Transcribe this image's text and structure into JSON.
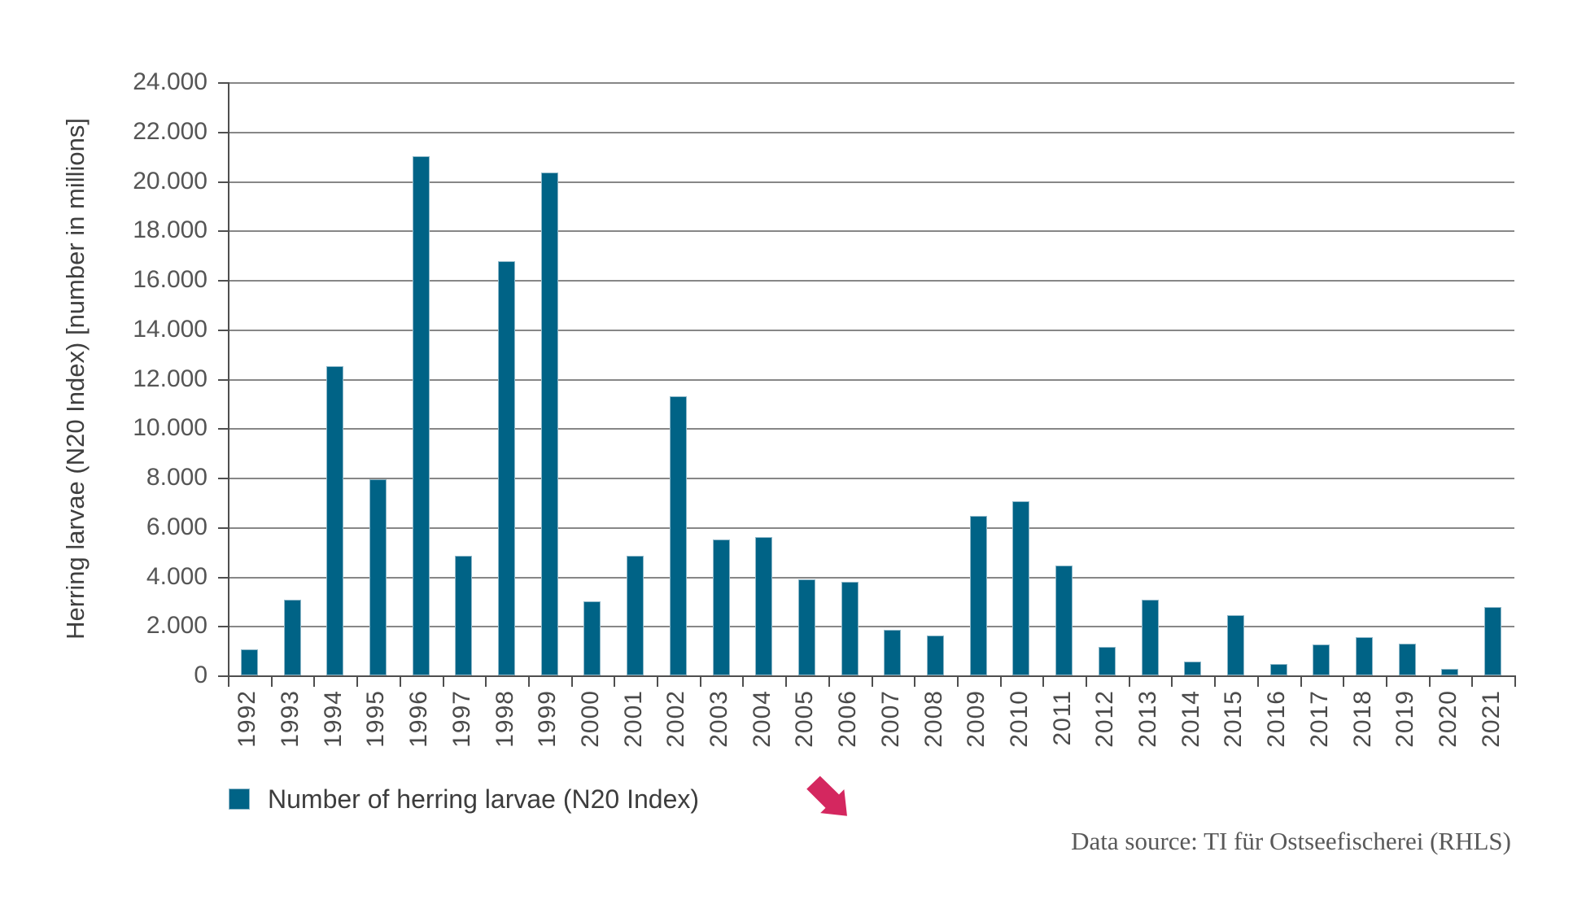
{
  "chart_data": {
    "type": "bar",
    "title": "",
    "categories": [
      "1992",
      "1993",
      "1994",
      "1995",
      "1996",
      "1997",
      "1998",
      "1999",
      "2000",
      "2001",
      "2002",
      "2003",
      "2004",
      "2005",
      "2006",
      "2007",
      "2008",
      "2009",
      "2010",
      "2011",
      "2012",
      "2013",
      "2014",
      "2015",
      "2016",
      "2017",
      "2018",
      "2019",
      "2020",
      "2021"
    ],
    "values": [
      1050,
      3050,
      12500,
      7950,
      21000,
      4850,
      16750,
      20350,
      3000,
      4850,
      11300,
      5500,
      5600,
      3900,
      3800,
      1850,
      1600,
      6450,
      7050,
      4450,
      1150,
      3050,
      550,
      2450,
      450,
      1250,
      1550,
      1300,
      250,
      2750
    ],
    "xlabel": "",
    "ylabel": "Herring larvae (N20 Index) [number in millions]",
    "ylim": [
      0,
      24000
    ],
    "ytick_values": [
      0,
      2000,
      4000,
      6000,
      8000,
      10000,
      12000,
      14000,
      16000,
      18000,
      20000,
      22000,
      24000
    ],
    "ytick_labels": [
      "0",
      "2.000",
      "4.000",
      "6.000",
      "8.000",
      "10.000",
      "12.000",
      "14.000",
      "16.000",
      "18.000",
      "20.000",
      "22.000",
      "24.000"
    ],
    "grid": "horizontal",
    "bar_color": "#006386",
    "bar_edge_color": "#8fb8c9",
    "legend": {
      "position": "bottom-left",
      "items": [
        {
          "label": "Number of herring larvae (N20 Index)",
          "color": "#006386"
        }
      ]
    },
    "annotations": [
      {
        "type": "icon",
        "name": "trend-down-arrow",
        "color": "#d4275f"
      }
    ]
  },
  "footer": {
    "source_label": "Data source: TI für Ostseefischerei (RHLS)"
  }
}
